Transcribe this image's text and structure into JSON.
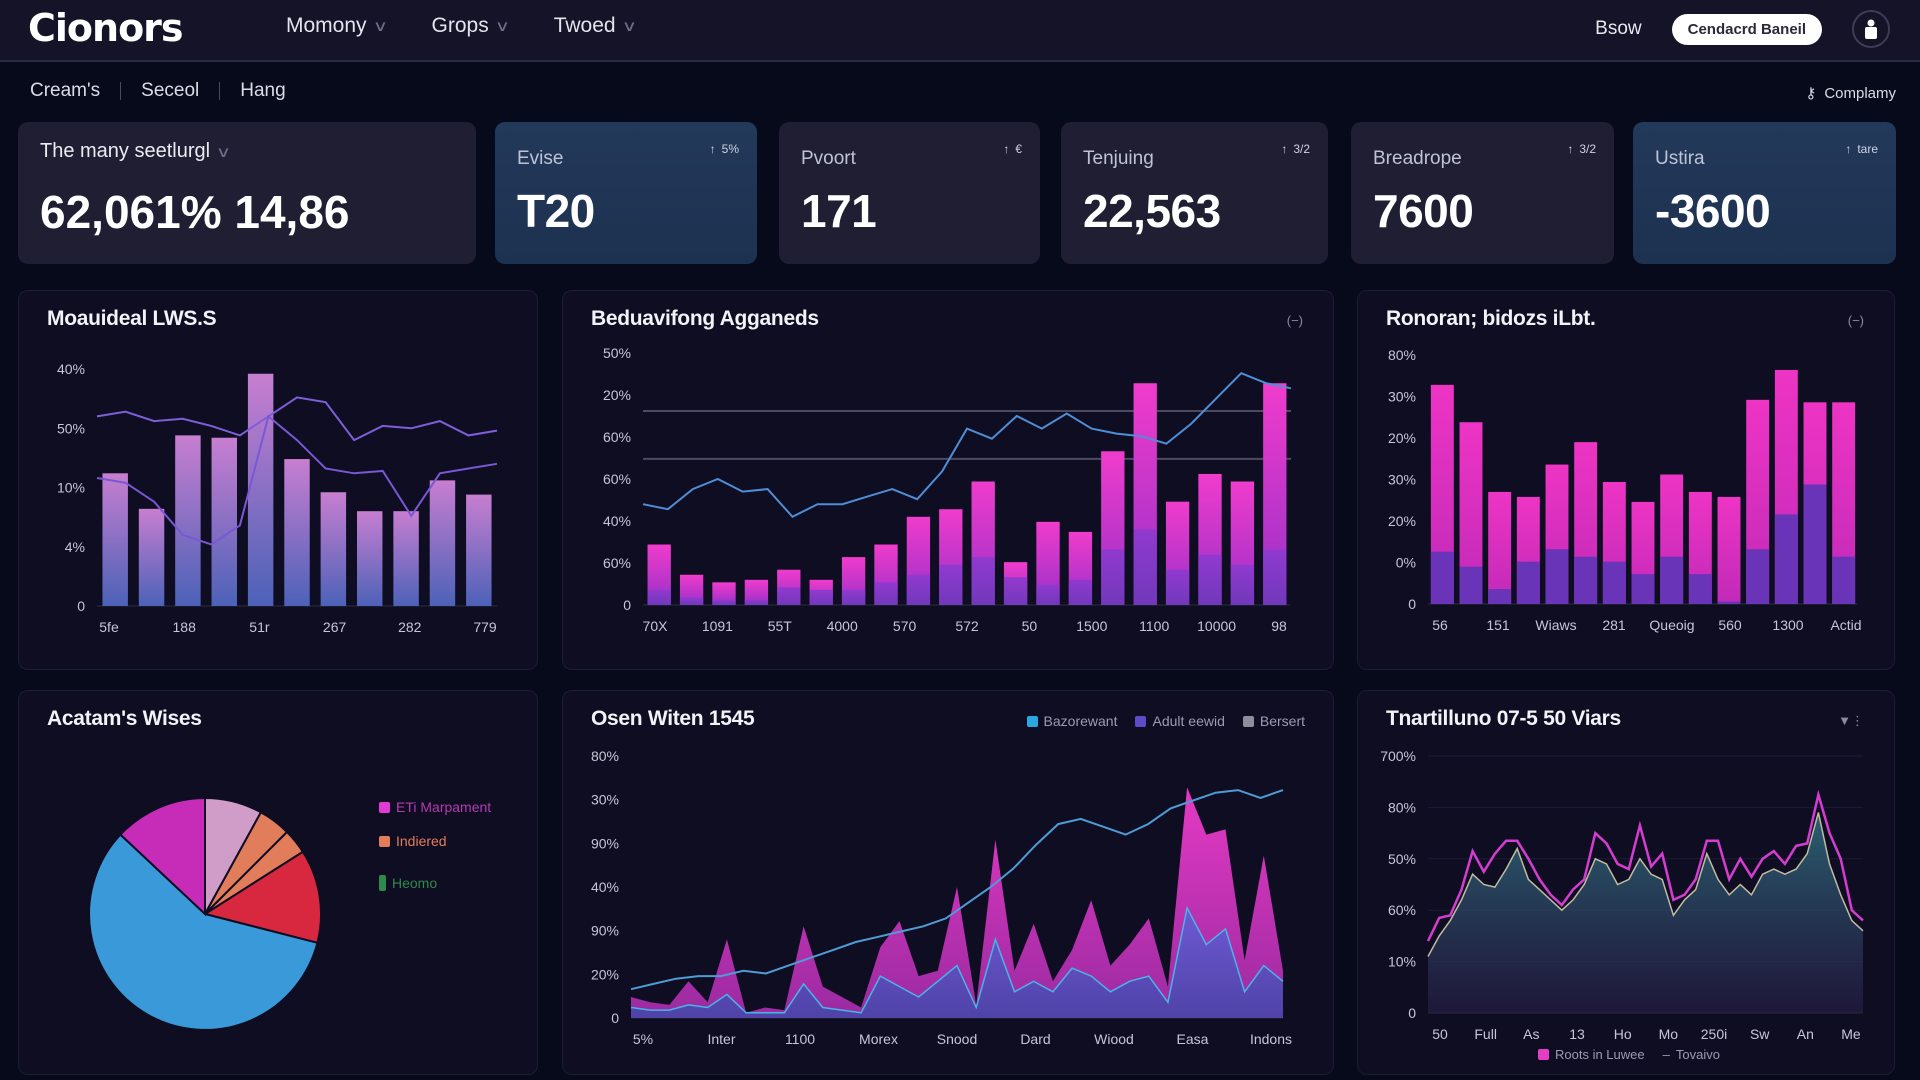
{
  "app": {
    "logo": "Cionors",
    "nav": [
      {
        "label": "Momony"
      },
      {
        "label": "Grops"
      },
      {
        "label": "Twoed"
      }
    ],
    "top_link": "Bsow",
    "primary_button": "Cendacrd Baneil",
    "avatar_icon": "user-icon"
  },
  "breadcrumbs": [
    "Cream's",
    "Seceol",
    "Hang"
  ],
  "company_link": "Complamy",
  "summary": {
    "label": "The many seetlurgl",
    "value": "62,061% 14,86"
  },
  "kpis": [
    {
      "label": "Evise",
      "value": "T20",
      "trend": "5%",
      "style": "blue"
    },
    {
      "label": "Pvoort",
      "value": "171",
      "trend": "€",
      "style": "dark"
    },
    {
      "label": "Tenjuing",
      "value": "22,563",
      "trend": "3/2",
      "style": "dark"
    },
    {
      "label": "Breadrope",
      "value": "7600",
      "trend": "3/2",
      "style": "dark"
    },
    {
      "label": "Ustira",
      "value": "-3600",
      "trend": "tare",
      "style": "blue"
    }
  ],
  "chart_data": [
    {
      "id": "chart1",
      "type": "bar",
      "title": "Moauideal LWS.S",
      "ytick_labels": [
        "0",
        "4%",
        "10%",
        "50%",
        "40%"
      ],
      "xtick_labels": [
        "5fe",
        "188",
        "51r",
        "267",
        "282",
        "779"
      ],
      "ylim": [
        0,
        100
      ],
      "values": [
        56,
        41,
        72,
        71,
        98,
        62,
        48,
        40,
        40,
        53,
        47
      ],
      "line_series": [
        {
          "name": "upper",
          "color": "#7e5fd8",
          "values": [
            80,
            82,
            78,
            79,
            76,
            72,
            80,
            88,
            86,
            70,
            76,
            75,
            78,
            72,
            74
          ]
        },
        {
          "name": "lower",
          "color": "#7a57d6",
          "values": [
            54,
            52,
            44,
            30,
            26,
            34,
            80,
            70,
            58,
            56,
            57,
            38,
            56,
            58,
            60
          ]
        }
      ],
      "bar_gradient": [
        "#c77ed0",
        "#4c62b8"
      ]
    },
    {
      "id": "chart2",
      "type": "bar",
      "title": "Beduavifong Agganeds",
      "ytick_labels": [
        "0",
        "60%",
        "40%",
        "60%",
        "60%",
        "20%",
        "50%"
      ],
      "xtick_labels": [
        "70X",
        "1091",
        "55T",
        "4000",
        "570",
        "572",
        "50",
        "1500",
        "1100",
        "10000",
        "98"
      ],
      "ylim": [
        0,
        100
      ],
      "values": [
        24,
        12,
        9,
        10,
        14,
        10,
        19,
        24,
        35,
        38,
        49,
        17,
        33,
        29,
        61,
        88,
        41,
        52,
        49,
        88
      ],
      "stack_lower": [
        6,
        3,
        2,
        2,
        7,
        6,
        6,
        9,
        12,
        16,
        19,
        11,
        8,
        10,
        22,
        30,
        14,
        20,
        16,
        22
      ],
      "line_series": [
        {
          "name": "trend",
          "color": "#4f8ed6",
          "values": [
            40,
            38,
            46,
            50,
            45,
            46,
            35,
            40,
            40,
            43,
            46,
            42,
            53,
            70,
            66,
            75,
            70,
            76,
            70,
            68,
            67,
            64,
            72,
            82,
            92,
            88,
            86
          ]
        }
      ],
      "reference_lines": [
        58,
        77
      ]
    },
    {
      "id": "chart3",
      "type": "bar",
      "title": "Ronoran; bidozs iLbt.",
      "ytick_labels": [
        "0",
        "0%",
        "20%",
        "30%",
        "20%",
        "30%",
        "80%"
      ],
      "xtick_labels": [
        "56",
        "151",
        "Wiaws",
        "281",
        "Queoig",
        "560",
        "1300",
        "Actid"
      ],
      "ylim": [
        0,
        100
      ],
      "values": [
        88,
        73,
        45,
        43,
        56,
        65,
        49,
        41,
        52,
        45,
        43,
        82,
        94,
        81,
        81
      ],
      "stack_lower": [
        21,
        15,
        6,
        17,
        22,
        19,
        17,
        12,
        19,
        12,
        1,
        22,
        36,
        48,
        19
      ]
    },
    {
      "id": "chart4",
      "type": "pie",
      "title": "Acatam's Wises",
      "slices": [
        {
          "label": "Blue segment",
          "value": 58,
          "color": "#3a9ad9"
        },
        {
          "label": "Magenta segment",
          "value": 13,
          "color": "#c62cb8"
        },
        {
          "label": "Rose segment",
          "value": 8,
          "color": "#cf9dc8"
        },
        {
          "label": "Orange A",
          "value": 4.5,
          "color": "#e27d5b"
        },
        {
          "label": "Orange B",
          "value": 3.5,
          "color": "#e27d5b"
        },
        {
          "label": "Red segment",
          "value": 13,
          "color": "#d8283f"
        }
      ],
      "legend": [
        {
          "label": "ETi Marpament",
          "color": "#e03bd5"
        },
        {
          "label": "Indiered",
          "color": "#e27d5b"
        },
        {
          "label": "Heomo",
          "color": "#2e8a4c"
        }
      ]
    },
    {
      "id": "chart5",
      "type": "area",
      "title": "Osen Witen 1545",
      "ytick_labels": [
        "0",
        "20%",
        "90%",
        "40%",
        "90%",
        "30%",
        "80%"
      ],
      "xtick_labels": [
        "5%",
        "Inter",
        "1100",
        "Morex",
        "Snood",
        "Dard",
        "Wiood",
        "Easa",
        "Indons"
      ],
      "ylim": [
        0,
        100
      ],
      "legend": [
        {
          "label": "Bazorewant",
          "color": "#2aa7e0"
        },
        {
          "label": "Adult eewid",
          "color": "#5d4cc7"
        },
        {
          "label": "Bersert",
          "color": "#8d8d9c"
        }
      ],
      "series": [
        {
          "name": "Bazorewant",
          "color": "#4f9bd4",
          "values": [
            11,
            13,
            15,
            16,
            16,
            18,
            17,
            20,
            23,
            26,
            29,
            31,
            33,
            35,
            38,
            44,
            50,
            57,
            66,
            74,
            76,
            73,
            70,
            74,
            80,
            83,
            86,
            87,
            84,
            87
          ]
        },
        {
          "name": "Pink area",
          "color": "#e43ec6",
          "values": [
            8,
            6,
            5,
            14,
            6,
            30,
            2,
            4,
            3,
            35,
            12,
            8,
            4,
            27,
            37,
            16,
            18,
            50,
            5,
            68,
            18,
            36,
            14,
            26,
            45,
            20,
            28,
            38,
            12,
            88,
            70,
            72,
            22,
            62,
            18
          ]
        },
        {
          "name": "Adult eewid",
          "color": "#6b5ad0",
          "values": [
            4,
            3,
            3,
            5,
            4,
            9,
            2,
            2,
            2,
            13,
            4,
            3,
            2,
            16,
            12,
            8,
            14,
            20,
            4,
            30,
            10,
            14,
            10,
            19,
            16,
            10,
            14,
            16,
            6,
            42,
            28,
            34,
            10,
            20,
            14
          ]
        }
      ]
    },
    {
      "id": "chart6",
      "type": "area",
      "title": "Tnartilluno 07-5 50 Viars",
      "ytick_labels": [
        "0",
        "10%",
        "60%",
        "50%",
        "80%",
        "700%"
      ],
      "xtick_labels": [
        "50",
        "Full",
        "As",
        "13",
        "Ho",
        "Mo",
        "250i",
        "Sw",
        "An",
        "Me"
      ],
      "ylim": [
        0,
        100
      ],
      "legend": [
        {
          "label": "Roots in Luwee",
          "color": "#e43ec6",
          "kind": "box"
        },
        {
          "label": "Tovaivo",
          "color": "#b4b1a4",
          "kind": "line"
        }
      ],
      "series": [
        {
          "name": "Roots in Luwee",
          "color": "#d53cd0",
          "values": [
            28,
            37,
            38,
            48,
            63,
            55,
            62,
            67,
            67,
            60,
            52,
            46,
            42,
            48,
            52,
            70,
            66,
            58,
            56,
            73,
            57,
            62,
            44,
            46,
            52,
            67,
            67,
            52,
            60,
            53,
            60,
            63,
            58,
            65,
            66,
            85,
            70,
            60,
            40,
            36
          ]
        },
        {
          "name": "Tovaivo",
          "color": "#c2bba0",
          "values": [
            22,
            30,
            36,
            44,
            54,
            50,
            49,
            56,
            64,
            52,
            48,
            44,
            40,
            44,
            50,
            60,
            58,
            50,
            52,
            60,
            54,
            52,
            38,
            44,
            48,
            62,
            52,
            46,
            50,
            46,
            54,
            56,
            54,
            56,
            62,
            78,
            58,
            46,
            36,
            32
          ]
        }
      ]
    }
  ]
}
